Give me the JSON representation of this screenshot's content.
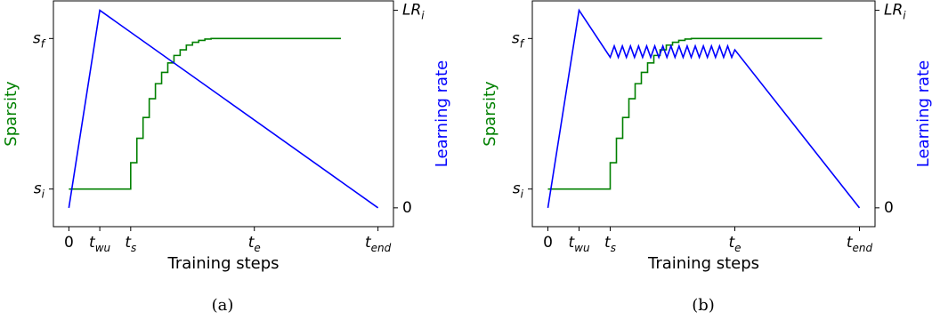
{
  "chart_data": [
    {
      "type": "line",
      "caption": "(a)",
      "xlabel": "Training steps",
      "ylabel_left": "Sparsity",
      "ylabel_right": "Learning rate",
      "xlim": [
        -0.05,
        1.05
      ],
      "ylim_left": [
        -0.1,
        1.1
      ],
      "ylim_right": [
        -0.1,
        1.1
      ],
      "x_ticks": [
        {
          "value": 0,
          "base": "0",
          "sub": ""
        },
        {
          "value": 0.1,
          "base": "t",
          "sub": "wu"
        },
        {
          "value": 0.2,
          "base": "t",
          "sub": "s"
        },
        {
          "value": 0.6,
          "base": "t",
          "sub": "e"
        },
        {
          "value": 1.0,
          "base": "t",
          "sub": "end"
        }
      ],
      "y_ticks_left": [
        {
          "value": 0.1,
          "base": "s",
          "sub": "i"
        },
        {
          "value": 0.9,
          "base": "s",
          "sub": "f"
        }
      ],
      "y_ticks_right": [
        {
          "value": 0,
          "base": "0",
          "sub": ""
        },
        {
          "value": 1.05,
          "base": "LR",
          "sub": "i"
        }
      ],
      "sparsity_color": "#008000",
      "lr_color": "#0000ff",
      "series": [
        {
          "axis": "left",
          "shape": "step",
          "points": [
            [
              0,
              0.1
            ],
            [
              0.2,
              0.1
            ],
            [
              0.2,
              0.24
            ],
            [
              0.22,
              0.24
            ],
            [
              0.22,
              0.37
            ],
            [
              0.24,
              0.37
            ],
            [
              0.24,
              0.48
            ],
            [
              0.26,
              0.48
            ],
            [
              0.26,
              0.58
            ],
            [
              0.28,
              0.58
            ],
            [
              0.28,
              0.66
            ],
            [
              0.3,
              0.66
            ],
            [
              0.3,
              0.72
            ],
            [
              0.32,
              0.72
            ],
            [
              0.32,
              0.77
            ],
            [
              0.34,
              0.77
            ],
            [
              0.34,
              0.81
            ],
            [
              0.36,
              0.81
            ],
            [
              0.36,
              0.84
            ],
            [
              0.38,
              0.84
            ],
            [
              0.38,
              0.865
            ],
            [
              0.4,
              0.865
            ],
            [
              0.4,
              0.88
            ],
            [
              0.42,
              0.88
            ],
            [
              0.42,
              0.89
            ],
            [
              0.44,
              0.89
            ],
            [
              0.44,
              0.897
            ],
            [
              0.46,
              0.897
            ],
            [
              0.46,
              0.9
            ],
            [
              0.88,
              0.9
            ]
          ]
        },
        {
          "axis": "right",
          "shape": "line",
          "points": [
            [
              0,
              0
            ],
            [
              0.1,
              1.05
            ],
            [
              1.0,
              0
            ]
          ]
        }
      ]
    },
    {
      "type": "line",
      "caption": "(b)",
      "xlabel": "Training steps",
      "ylabel_left": "Sparsity",
      "ylabel_right": "Learning rate",
      "xlim": [
        -0.05,
        1.05
      ],
      "ylim_left": [
        -0.1,
        1.1
      ],
      "ylim_right": [
        -0.1,
        1.1
      ],
      "x_ticks": [
        {
          "value": 0,
          "base": "0",
          "sub": ""
        },
        {
          "value": 0.1,
          "base": "t",
          "sub": "wu"
        },
        {
          "value": 0.2,
          "base": "t",
          "sub": "s"
        },
        {
          "value": 0.6,
          "base": "t",
          "sub": "e"
        },
        {
          "value": 1.0,
          "base": "t",
          "sub": "end"
        }
      ],
      "y_ticks_left": [
        {
          "value": 0.1,
          "base": "s",
          "sub": "i"
        },
        {
          "value": 0.9,
          "base": "s",
          "sub": "f"
        }
      ],
      "y_ticks_right": [
        {
          "value": 0,
          "base": "0",
          "sub": ""
        },
        {
          "value": 1.05,
          "base": "LR",
          "sub": "i"
        }
      ],
      "sparsity_color": "#008000",
      "lr_color": "#0000ff",
      "series": [
        {
          "axis": "left",
          "shape": "step",
          "points": [
            [
              0,
              0.1
            ],
            [
              0.2,
              0.1
            ],
            [
              0.2,
              0.24
            ],
            [
              0.22,
              0.24
            ],
            [
              0.22,
              0.37
            ],
            [
              0.24,
              0.37
            ],
            [
              0.24,
              0.48
            ],
            [
              0.26,
              0.48
            ],
            [
              0.26,
              0.58
            ],
            [
              0.28,
              0.58
            ],
            [
              0.28,
              0.66
            ],
            [
              0.3,
              0.66
            ],
            [
              0.3,
              0.72
            ],
            [
              0.32,
              0.72
            ],
            [
              0.32,
              0.77
            ],
            [
              0.34,
              0.77
            ],
            [
              0.34,
              0.81
            ],
            [
              0.36,
              0.81
            ],
            [
              0.36,
              0.84
            ],
            [
              0.38,
              0.84
            ],
            [
              0.38,
              0.865
            ],
            [
              0.4,
              0.865
            ],
            [
              0.4,
              0.88
            ],
            [
              0.42,
              0.88
            ],
            [
              0.42,
              0.89
            ],
            [
              0.44,
              0.89
            ],
            [
              0.44,
              0.897
            ],
            [
              0.46,
              0.897
            ],
            [
              0.46,
              0.9
            ],
            [
              0.88,
              0.9
            ]
          ]
        },
        {
          "axis": "right",
          "shape": "line",
          "points": [
            [
              0,
              0
            ],
            [
              0.1,
              1.05
            ],
            [
              0.2,
              0.8
            ],
            [
              0.213,
              0.86
            ],
            [
              0.226,
              0.8
            ],
            [
              0.239,
              0.86
            ],
            [
              0.252,
              0.8
            ],
            [
              0.265,
              0.86
            ],
            [
              0.278,
              0.8
            ],
            [
              0.291,
              0.86
            ],
            [
              0.304,
              0.8
            ],
            [
              0.317,
              0.86
            ],
            [
              0.33,
              0.8
            ],
            [
              0.343,
              0.86
            ],
            [
              0.356,
              0.8
            ],
            [
              0.369,
              0.86
            ],
            [
              0.382,
              0.8
            ],
            [
              0.395,
              0.86
            ],
            [
              0.408,
              0.8
            ],
            [
              0.421,
              0.86
            ],
            [
              0.434,
              0.8
            ],
            [
              0.447,
              0.86
            ],
            [
              0.46,
              0.8
            ],
            [
              0.473,
              0.86
            ],
            [
              0.486,
              0.8
            ],
            [
              0.499,
              0.86
            ],
            [
              0.512,
              0.8
            ],
            [
              0.525,
              0.86
            ],
            [
              0.538,
              0.8
            ],
            [
              0.551,
              0.86
            ],
            [
              0.564,
              0.8
            ],
            [
              0.577,
              0.86
            ],
            [
              0.59,
              0.8
            ],
            [
              0.6,
              0.84
            ],
            [
              1.0,
              0
            ]
          ]
        }
      ]
    }
  ]
}
